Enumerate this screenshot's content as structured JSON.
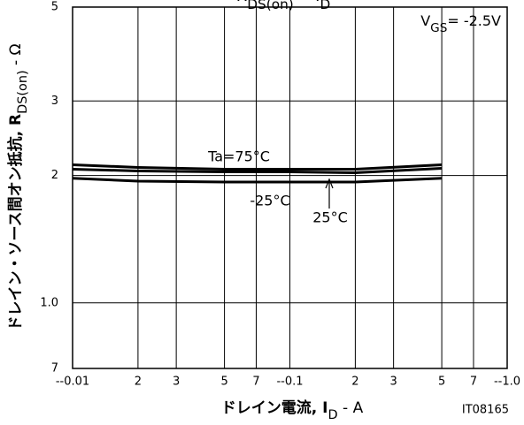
{
  "chart_data": {
    "type": "line",
    "title": [
      "R",
      "DS(on)",
      " -- I",
      "D"
    ],
    "x_label": [
      "ドレイン電流, I",
      "D",
      " - A"
    ],
    "y_label": [
      "ドレイン・ソース間オン抵抗, R",
      "DS(on)",
      " - Ω"
    ],
    "condition": [
      "V",
      "GS",
      "= -2.5V"
    ],
    "figure_id": "IT08165",
    "log_x": true,
    "log_y": true,
    "grid": true,
    "xlim": [
      0.01,
      1.0
    ],
    "ylim": [
      0.7,
      5
    ],
    "xticks": [
      {
        "value": 0.01,
        "label": "--0.01"
      },
      {
        "value": 0.02,
        "label": "2"
      },
      {
        "value": 0.03,
        "label": "3"
      },
      {
        "value": 0.05,
        "label": "5"
      },
      {
        "value": 0.07,
        "label": "7"
      },
      {
        "value": 0.1,
        "label": "--0.1"
      },
      {
        "value": 0.2,
        "label": "2"
      },
      {
        "value": 0.3,
        "label": "3"
      },
      {
        "value": 0.5,
        "label": "5"
      },
      {
        "value": 0.7,
        "label": "7"
      },
      {
        "value": 1.0,
        "label": "--1.0"
      }
    ],
    "yticks": [
      {
        "value": 0.7,
        "label": "7"
      },
      {
        "value": 1,
        "label": "1.0"
      },
      2,
      3,
      5
    ],
    "x": [
      0.01,
      0.02,
      0.05,
      0.1,
      0.2,
      0.5
    ],
    "series": [
      {
        "name": "Ta=75°C",
        "color": "#000000",
        "values": [
          2.12,
          2.09,
          2.07,
          2.07,
          2.07,
          2.12
        ]
      },
      {
        "name": "25°C",
        "color": "#000000",
        "values": [
          2.07,
          2.05,
          2.04,
          2.04,
          2.03,
          2.08
        ]
      },
      {
        "name": "-25°C",
        "color": "#000000",
        "values": [
          1.97,
          1.94,
          1.93,
          1.93,
          1.93,
          1.97
        ]
      }
    ]
  }
}
